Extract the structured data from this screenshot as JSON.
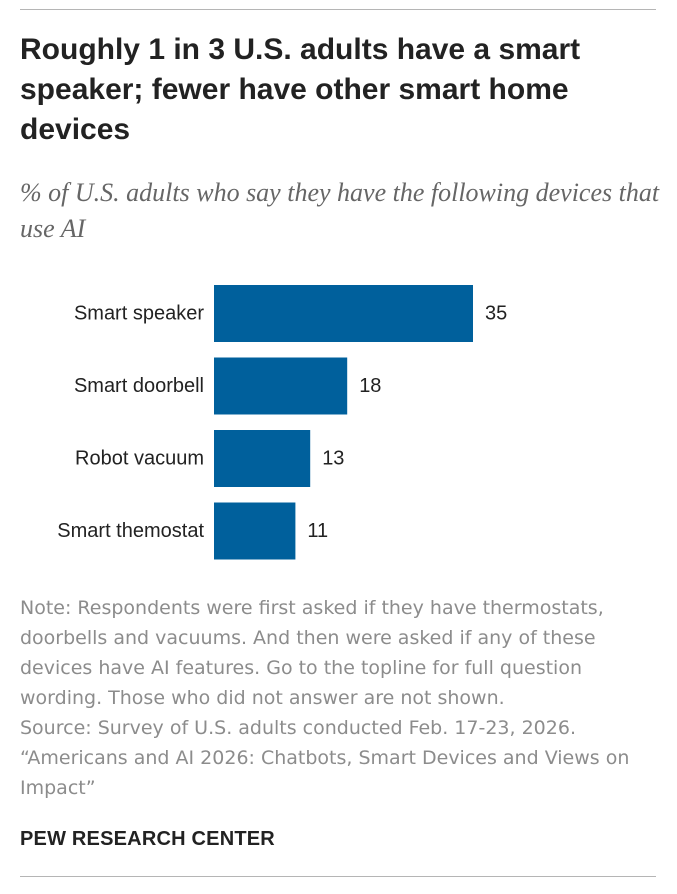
{
  "title": "Roughly 1 in 3 U.S. adults have a smart speaker; fewer have other smart home devices",
  "subtitle": "% of U.S. adults who say they have the following devices that use AI",
  "note": "Note: Respondents were first asked if they have thermostats, doorbells and vacuums. And then were asked if any of these devices have AI features. Go to the topline for full question wording. Those who did not answer are not shown.",
  "source_line1": "Source: Survey of U.S. adults conducted Feb. 17-23, 2026.",
  "source_line2": "“Americans and AI 2026: Chatbots, Smart Devices and Views on Impact”",
  "brand": "PEW RESEARCH CENTER",
  "colors": {
    "bar": "#00609c"
  },
  "chart_data": {
    "type": "bar",
    "orientation": "horizontal",
    "categories": [
      "Smart speaker",
      "Smart doorbell",
      "Robot vacuum",
      "Smart themostat"
    ],
    "values": [
      35,
      18,
      13,
      11
    ],
    "title": "",
    "xlabel": "",
    "ylabel": "",
    "xlim": [
      0,
      35
    ],
    "grid": false,
    "legend": "none"
  }
}
